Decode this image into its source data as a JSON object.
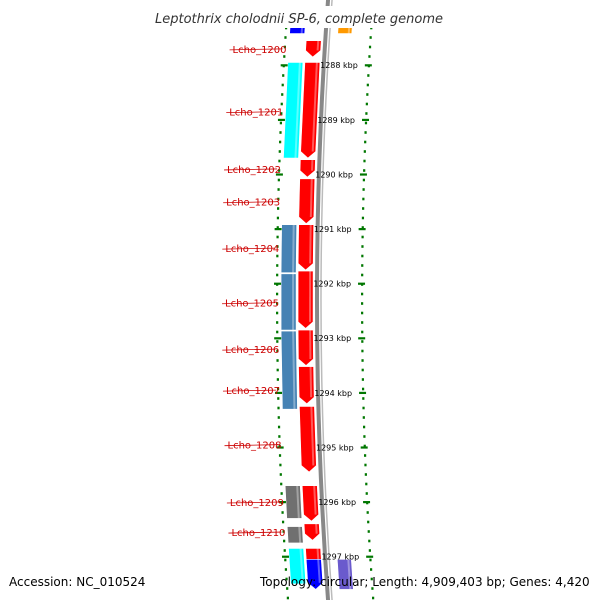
{
  "title": "Leptothrix cholodnii SP-6, complete genome",
  "footer": {
    "accession": "Accession: NC_010524",
    "summary": "Topology: circular; Length: 4,909,403 bp; Genes: 4,420"
  },
  "colors": {
    "cds_forward": "#ff0000",
    "cds_reverse_cyan": "#00ffff",
    "cds_reverse_steelblue": "#4682b4",
    "cds_reverse_gray": "#707070",
    "backbone": "#888888",
    "ticks": "#007700",
    "gene_label": "#cc0000",
    "top_orange": "#ff9900",
    "top_blue": "#0000ff",
    "bottom_purple": "#6a5acd"
  },
  "ticks": [
    {
      "kbp": 1288,
      "label": "1288 kbp"
    },
    {
      "kbp": 1289,
      "label": "1289 kbp"
    },
    {
      "kbp": 1290,
      "label": "1290 kbp"
    },
    {
      "kbp": 1291,
      "label": "1291 kbp"
    },
    {
      "kbp": 1292,
      "label": "1292 kbp"
    },
    {
      "kbp": 1293,
      "label": "1293 kbp"
    },
    {
      "kbp": 1294,
      "label": "1294 kbp"
    },
    {
      "kbp": 1295,
      "label": "1295 kbp"
    },
    {
      "kbp": 1296,
      "label": "1296 kbp"
    },
    {
      "kbp": 1297,
      "label": "1297 kbp"
    }
  ],
  "genes": [
    {
      "id": "Lcho_1200",
      "start_kbp": 1287.55,
      "end_kbp": 1287.85,
      "strand": "forward",
      "color": "#ff0000"
    },
    {
      "id": "Lcho_1201",
      "start_kbp": 1287.95,
      "end_kbp": 1289.7,
      "strand": "forward",
      "color": "#ff0000"
    },
    {
      "id": "Lcho_1201b",
      "start_kbp": 1287.95,
      "end_kbp": 1289.7,
      "strand": "reverse",
      "color": "#00ffff"
    },
    {
      "id": "Lcho_1202",
      "start_kbp": 1289.73,
      "end_kbp": 1290.05,
      "strand": "forward",
      "color": "#ff0000"
    },
    {
      "id": "Lcho_1203",
      "start_kbp": 1290.08,
      "end_kbp": 1290.9,
      "strand": "forward",
      "color": "#ff0000"
    },
    {
      "id": "Lcho_1204",
      "start_kbp": 1290.92,
      "end_kbp": 1291.75,
      "strand": "forward",
      "color": "#ff0000"
    },
    {
      "id": "Lcho_1204b",
      "start_kbp": 1290.92,
      "end_kbp": 1291.8,
      "strand": "reverse",
      "color": "#4682b4"
    },
    {
      "id": "Lcho_1205",
      "start_kbp": 1291.77,
      "end_kbp": 1292.82,
      "strand": "forward",
      "color": "#ff0000"
    },
    {
      "id": "Lcho_1205b",
      "start_kbp": 1291.82,
      "end_kbp": 1292.85,
      "strand": "reverse",
      "color": "#4682b4"
    },
    {
      "id": "Lcho_1206",
      "start_kbp": 1292.85,
      "end_kbp": 1293.5,
      "strand": "forward",
      "color": "#ff0000"
    },
    {
      "id": "Lcho_1206b",
      "start_kbp": 1292.87,
      "end_kbp": 1294.3,
      "strand": "reverse",
      "color": "#4682b4"
    },
    {
      "id": "Lcho_1207",
      "start_kbp": 1293.52,
      "end_kbp": 1294.2,
      "strand": "forward",
      "color": "#ff0000"
    },
    {
      "id": "Lcho_1208",
      "start_kbp": 1294.25,
      "end_kbp": 1295.45,
      "strand": "forward",
      "color": "#ff0000"
    },
    {
      "id": "Lcho_1209",
      "start_kbp": 1295.7,
      "end_kbp": 1296.35,
      "strand": "forward",
      "color": "#ff0000"
    },
    {
      "id": "Lcho_1209b",
      "start_kbp": 1295.7,
      "end_kbp": 1296.3,
      "strand": "reverse",
      "color": "#707070"
    },
    {
      "id": "Lcho_1210",
      "start_kbp": 1296.4,
      "end_kbp": 1296.7,
      "strand": "forward",
      "color": "#ff0000"
    },
    {
      "id": "Lcho_1210b",
      "start_kbp": 1296.45,
      "end_kbp": 1296.75,
      "strand": "reverse",
      "color": "#707070"
    },
    {
      "id": "Lcho_1211",
      "start_kbp": 1296.85,
      "end_kbp": 1297.5,
      "strand": "forward",
      "color": "#ff0000"
    },
    {
      "id": "Lcho_1211b",
      "start_kbp": 1296.85,
      "end_kbp": 1297.5,
      "strand": "reverse",
      "color": "#00ffff"
    },
    {
      "id": "Lcho_1212",
      "start_kbp": 1297.05,
      "end_kbp": 1297.6,
      "strand": "forward",
      "color": "#0000ff"
    },
    {
      "id": "Lcho_1213",
      "start_kbp": 1297.05,
      "end_kbp": 1297.6,
      "strand": "outer",
      "color": "#6a5acd"
    },
    {
      "id": "Lcho_1199a",
      "start_kbp": 1287.2,
      "end_kbp": 1287.42,
      "strand": "reverse",
      "color": "#0000ff"
    },
    {
      "id": "Lcho_1199b",
      "start_kbp": 1287.2,
      "end_kbp": 1287.42,
      "strand": "outer",
      "color": "#ff9900"
    }
  ],
  "gene_labels": [
    {
      "text": "Lcho_1200",
      "gene_kbp": 1287.7
    },
    {
      "text": "Lcho_1201",
      "gene_kbp": 1288.85
    },
    {
      "text": "Lcho_1202",
      "gene_kbp": 1289.9
    },
    {
      "text": "Lcho_1203",
      "gene_kbp": 1290.5
    },
    {
      "text": "Lcho_1204",
      "gene_kbp": 1291.35
    },
    {
      "text": "Lcho_1205",
      "gene_kbp": 1292.35
    },
    {
      "text": "Lcho_1206",
      "gene_kbp": 1293.2
    },
    {
      "text": "Lcho_1207",
      "gene_kbp": 1293.95
    },
    {
      "text": "Lcho_1208",
      "gene_kbp": 1294.95
    },
    {
      "text": "Lcho_1209",
      "gene_kbp": 1296.0
    },
    {
      "text": "Lcho_1210",
      "gene_kbp": 1296.55
    }
  ]
}
